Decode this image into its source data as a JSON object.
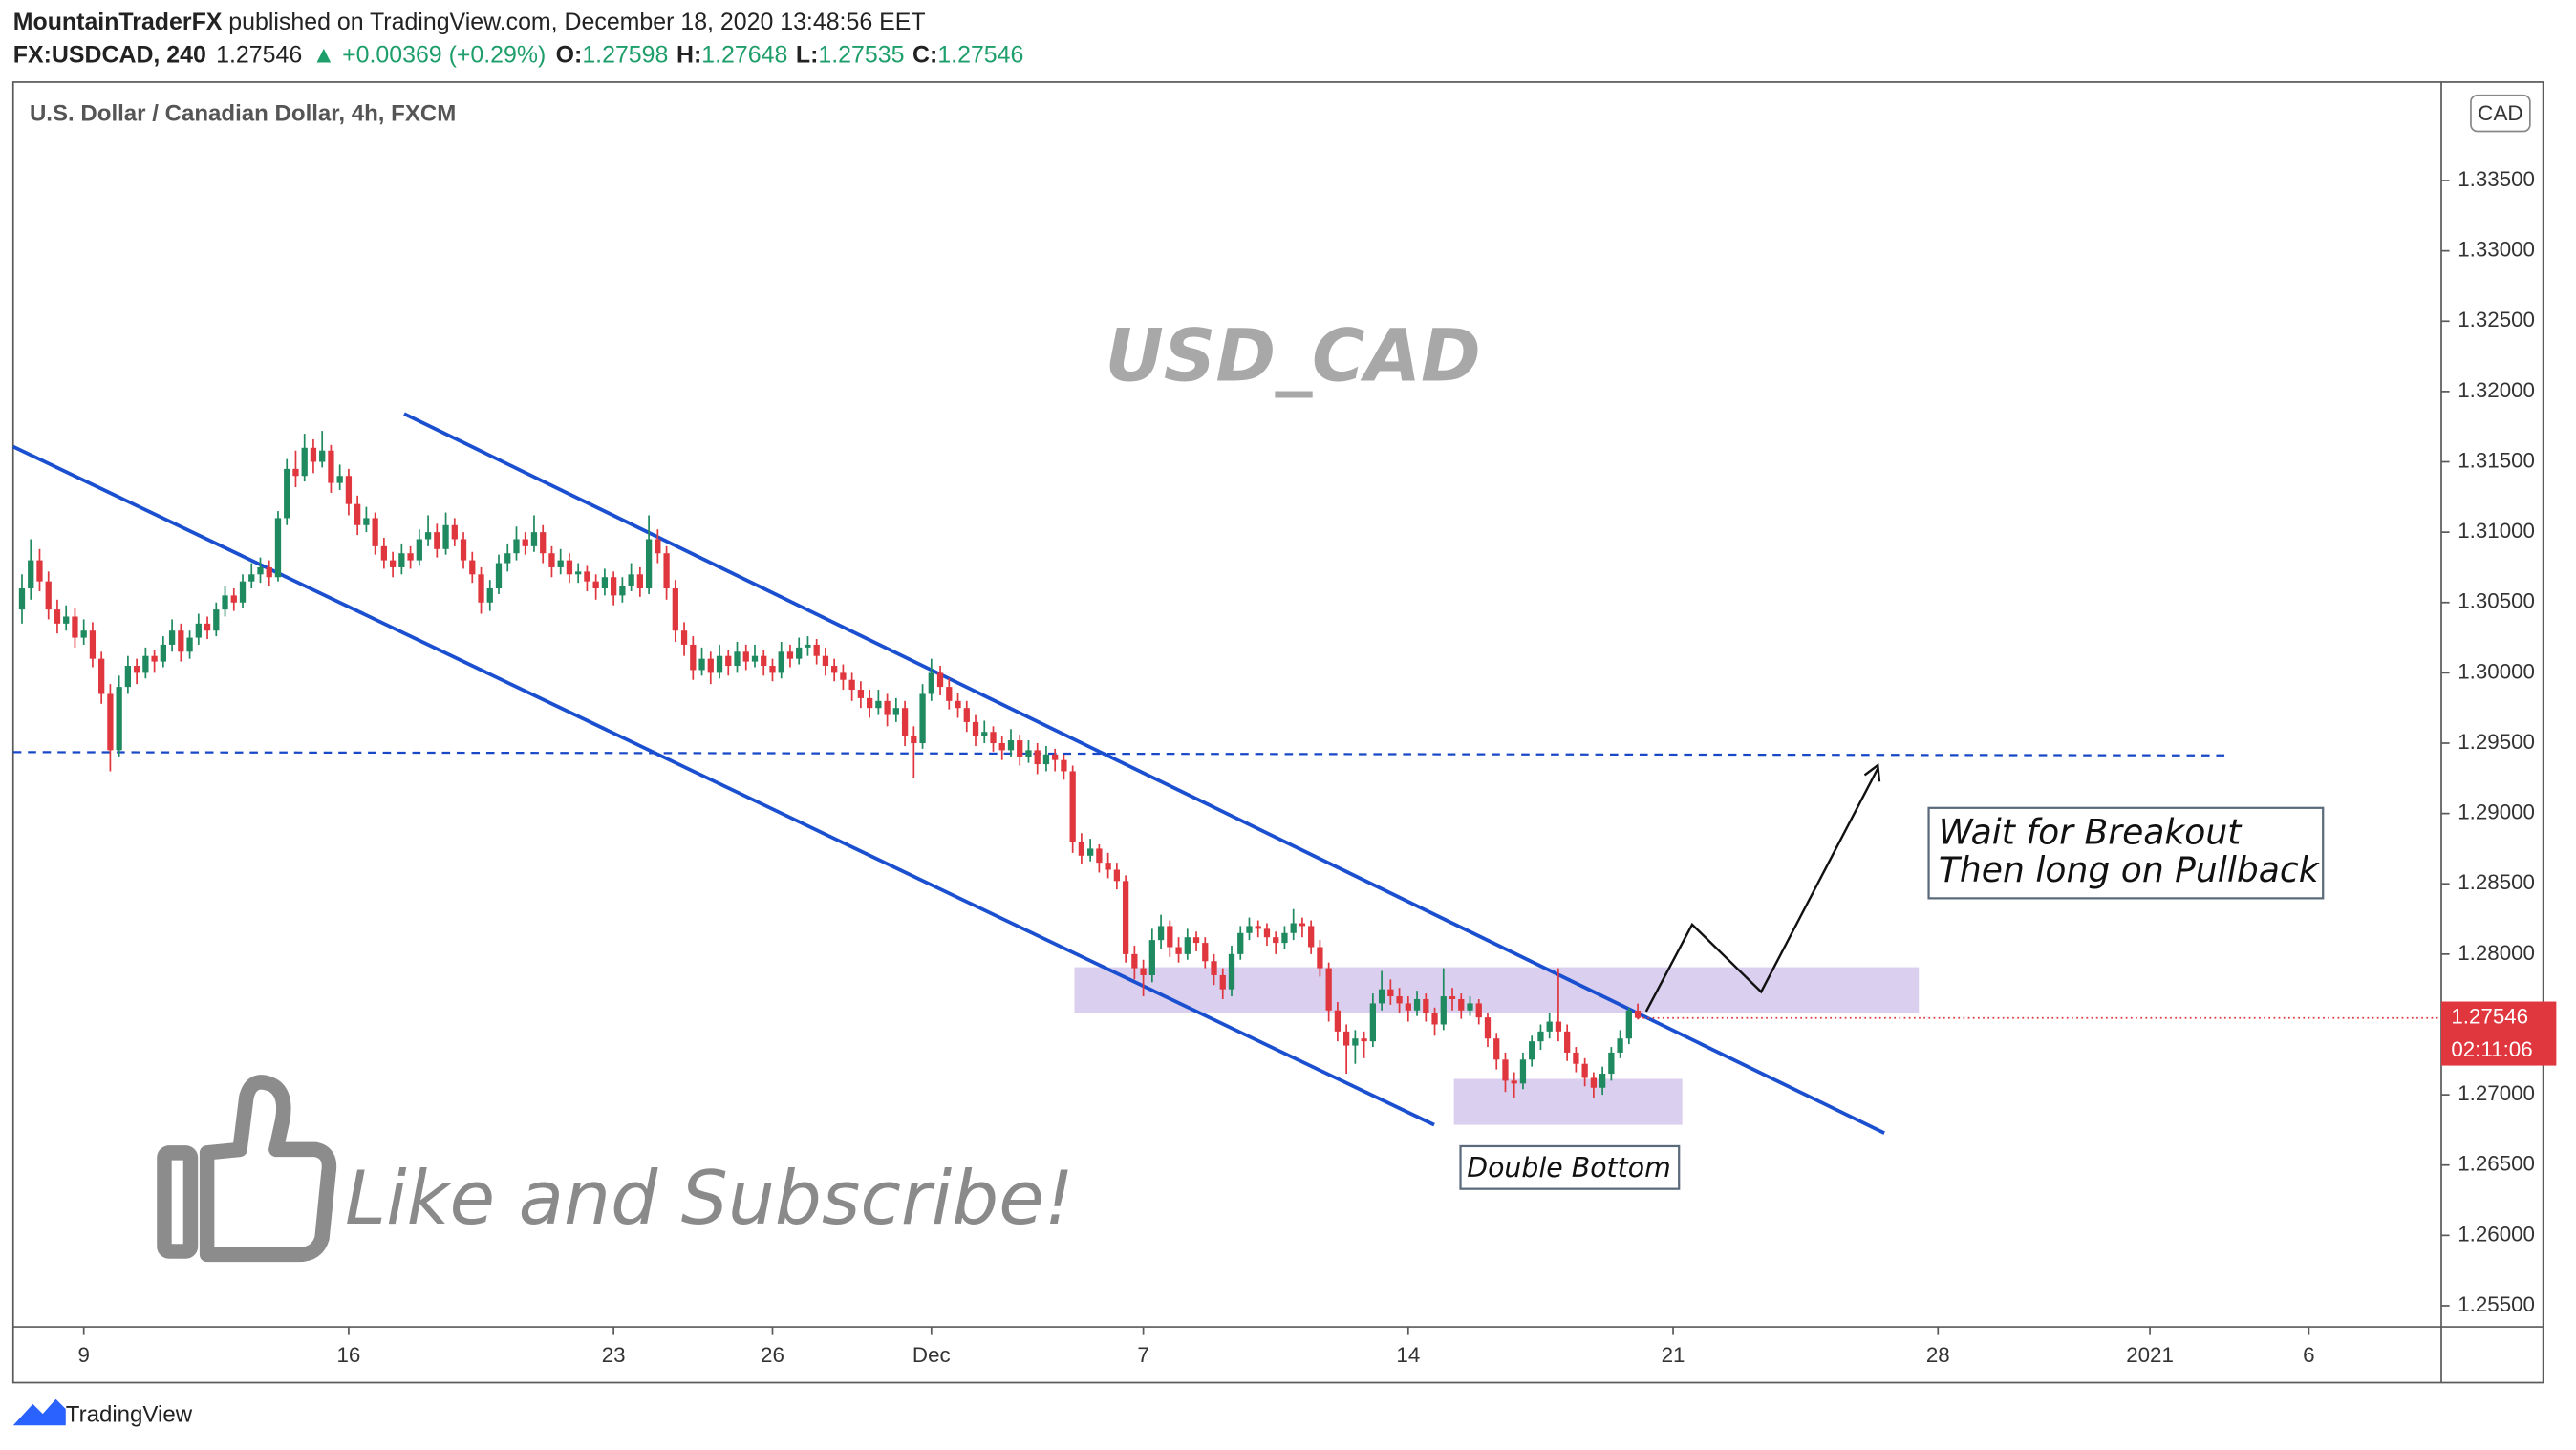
{
  "header": {
    "author": "MountainTraderFX",
    "published": "published on TradingView.com, December 18, 2020 13:48:56 EET",
    "symbol": "FX:USDCAD, 240",
    "change": "▲ +0.00369 (+0.29%)",
    "ohlc_labels": [
      "O:",
      "H:",
      "L:",
      "C:"
    ],
    "countdown": "02:11:06",
    "footer": "TradingView"
  },
  "chart_data": {
    "type": "candlestick",
    "title": "U.S. Dollar / Canadian Dollar, 4h, FXCM",
    "currency": "CAD",
    "up_color": "#1f8a5f",
    "down_color": "#e0373f",
    "grid": false,
    "annotations": {
      "watermark": "USD_CAD",
      "plan": [
        "Wait for Breakout",
        "Then long on Pullback"
      ],
      "pattern": "Double Bottom",
      "promo": "Like and Subscribe!"
    },
    "xlim": [
      -8,
      267
    ],
    "xticks": [
      {
        "value": 0,
        "label": "9"
      },
      {
        "value": 30,
        "label": "16"
      },
      {
        "value": 60,
        "label": "23"
      },
      {
        "value": 78,
        "label": "26"
      },
      {
        "value": 96,
        "label": "Dec"
      },
      {
        "value": 120,
        "label": "7"
      },
      {
        "value": 150,
        "label": "14"
      },
      {
        "value": 180,
        "label": "21"
      },
      {
        "value": 210,
        "label": "28"
      },
      {
        "value": 234,
        "label": "2021"
      },
      {
        "value": 252,
        "label": "6"
      }
    ],
    "ylim": [
      1.2535,
      1.342
    ],
    "yticks": [
      {
        "value": 1.255,
        "label": "1.25500"
      },
      {
        "value": 1.26,
        "label": "1.26000"
      },
      {
        "value": 1.265,
        "label": "1.26500"
      },
      {
        "value": 1.27,
        "label": "1.27000"
      },
      {
        "value": 1.275,
        "label": "1.27500"
      },
      {
        "value": 1.28,
        "label": "1.28000"
      },
      {
        "value": 1.285,
        "label": "1.28500"
      },
      {
        "value": 1.29,
        "label": "1.29000"
      },
      {
        "value": 1.295,
        "label": "1.29500"
      },
      {
        "value": 1.3,
        "label": "1.30000"
      },
      {
        "value": 1.305,
        "label": "1.30500"
      },
      {
        "value": 1.31,
        "label": "1.31000"
      },
      {
        "value": 1.315,
        "label": "1.31500"
      },
      {
        "value": 1.32,
        "label": "1.32000"
      },
      {
        "value": 1.325,
        "label": "1.32500"
      },
      {
        "value": 1.33,
        "label": "1.33000"
      },
      {
        "value": 1.335,
        "label": "1.33500"
      }
    ],
    "x": [
      -7,
      -6,
      -5,
      -4,
      -3,
      -2,
      -1,
      0,
      1,
      2,
      3,
      4,
      5,
      6,
      7,
      8,
      9,
      10,
      11,
      12,
      13,
      14,
      15,
      16,
      17,
      18,
      19,
      20,
      21,
      22,
      23,
      24,
      25,
      26,
      27,
      28,
      29,
      30,
      31,
      32,
      33,
      34,
      35,
      36,
      37,
      38,
      39,
      40,
      41,
      42,
      43,
      44,
      45,
      46,
      47,
      48,
      49,
      50,
      51,
      52,
      53,
      54,
      55,
      56,
      57,
      58,
      59,
      60,
      61,
      62,
      63,
      64,
      65,
      66,
      67,
      68,
      69,
      70,
      71,
      72,
      73,
      74,
      75,
      76,
      77,
      78,
      79,
      80,
      81,
      82,
      83,
      84,
      85,
      86,
      87,
      88,
      89,
      90,
      91,
      92,
      93,
      94,
      95,
      96,
      97,
      98,
      99,
      100,
      101,
      102,
      103,
      104,
      105,
      106,
      107,
      108,
      109,
      110,
      111,
      112,
      113,
      114,
      115,
      116,
      117,
      118,
      119,
      120,
      121,
      122,
      123,
      124,
      125,
      126,
      127,
      128,
      129,
      130,
      131,
      132,
      133,
      134,
      135,
      136,
      137,
      138,
      139,
      140,
      141,
      142,
      143,
      144,
      145,
      146,
      147,
      148,
      149,
      150,
      151,
      152,
      153,
      154,
      155,
      156,
      157,
      158,
      159,
      160,
      161,
      162,
      163,
      164,
      165,
      166,
      167,
      168,
      169,
      170,
      171,
      172,
      173,
      174,
      175,
      176
    ],
    "candles": [
      [
        1.3045,
        1.307,
        1.3035,
        1.306
      ],
      [
        1.306,
        1.3095,
        1.3052,
        1.308
      ],
      [
        1.308,
        1.3088,
        1.3058,
        1.3065
      ],
      [
        1.3065,
        1.3072,
        1.3038,
        1.3045
      ],
      [
        1.3045,
        1.3052,
        1.3028,
        1.3035
      ],
      [
        1.3035,
        1.3048,
        1.303,
        1.304
      ],
      [
        1.304,
        1.3046,
        1.3018,
        1.3025
      ],
      [
        1.3025,
        1.3038,
        1.302,
        1.303
      ],
      [
        1.303,
        1.3036,
        1.3004,
        1.301
      ],
      [
        1.301,
        1.3015,
        1.2978,
        1.2985
      ],
      [
        1.2985,
        1.2992,
        1.293,
        1.2945
      ],
      [
        1.2945,
        1.2998,
        1.294,
        1.299
      ],
      [
        1.299,
        1.3012,
        1.2985,
        1.3005
      ],
      [
        1.3005,
        1.301,
        1.2992,
        1.3
      ],
      [
        1.3,
        1.3018,
        1.2996,
        1.3012
      ],
      [
        1.3012,
        1.3016,
        1.3,
        1.3008
      ],
      [
        1.3008,
        1.3026,
        1.3004,
        1.302
      ],
      [
        1.302,
        1.3038,
        1.3015,
        1.303
      ],
      [
        1.303,
        1.3035,
        1.3008,
        1.3015
      ],
      [
        1.3015,
        1.303,
        1.301,
        1.3025
      ],
      [
        1.3025,
        1.3042,
        1.302,
        1.3035
      ],
      [
        1.3035,
        1.304,
        1.3024,
        1.303
      ],
      [
        1.303,
        1.305,
        1.3026,
        1.3045
      ],
      [
        1.3045,
        1.3062,
        1.304,
        1.3055
      ],
      [
        1.3055,
        1.306,
        1.3044,
        1.305
      ],
      [
        1.305,
        1.307,
        1.3046,
        1.3065
      ],
      [
        1.3065,
        1.3078,
        1.306,
        1.307
      ],
      [
        1.307,
        1.3082,
        1.3064,
        1.3075
      ],
      [
        1.3075,
        1.308,
        1.3062,
        1.3068
      ],
      [
        1.3068,
        1.3115,
        1.3065,
        1.311
      ],
      [
        1.311,
        1.3152,
        1.3105,
        1.3145
      ],
      [
        1.3145,
        1.3158,
        1.3132,
        1.314
      ],
      [
        1.314,
        1.317,
        1.3136,
        1.316
      ],
      [
        1.316,
        1.3166,
        1.3142,
        1.315
      ],
      [
        1.315,
        1.3172,
        1.3146,
        1.3158
      ],
      [
        1.3158,
        1.3162,
        1.3128,
        1.3135
      ],
      [
        1.3135,
        1.3148,
        1.313,
        1.314
      ],
      [
        1.314,
        1.3145,
        1.3112,
        1.312
      ],
      [
        1.312,
        1.3126,
        1.3098,
        1.3105
      ],
      [
        1.3105,
        1.3118,
        1.31,
        1.311
      ],
      [
        1.311,
        1.3114,
        1.3084,
        1.309
      ],
      [
        1.309,
        1.3096,
        1.3074,
        1.308
      ],
      [
        1.308,
        1.3086,
        1.3068,
        1.3075
      ],
      [
        1.3075,
        1.3092,
        1.307,
        1.3085
      ],
      [
        1.3085,
        1.309,
        1.3074,
        1.308
      ],
      [
        1.308,
        1.3102,
        1.3076,
        1.3095
      ],
      [
        1.3095,
        1.3112,
        1.309,
        1.31
      ],
      [
        1.31,
        1.3106,
        1.3082,
        1.3088
      ],
      [
        1.3088,
        1.3114,
        1.3084,
        1.3105
      ],
      [
        1.3105,
        1.311,
        1.309,
        1.3095
      ],
      [
        1.3095,
        1.31,
        1.3074,
        1.308
      ],
      [
        1.308,
        1.3086,
        1.3064,
        1.307
      ],
      [
        1.307,
        1.3075,
        1.3042,
        1.305
      ],
      [
        1.305,
        1.3066,
        1.3044,
        1.306
      ],
      [
        1.306,
        1.3084,
        1.3056,
        1.3078
      ],
      [
        1.3078,
        1.3092,
        1.3072,
        1.3085
      ],
      [
        1.3085,
        1.3104,
        1.308,
        1.3095
      ],
      [
        1.3095,
        1.31,
        1.3084,
        1.309
      ],
      [
        1.309,
        1.3112,
        1.3086,
        1.31
      ],
      [
        1.31,
        1.3105,
        1.3078,
        1.3085
      ],
      [
        1.3085,
        1.309,
        1.3068,
        1.3075
      ],
      [
        1.3075,
        1.3088,
        1.307,
        1.308
      ],
      [
        1.308,
        1.3085,
        1.3064,
        1.307
      ],
      [
        1.307,
        1.3078,
        1.3064,
        1.3072
      ],
      [
        1.3072,
        1.3076,
        1.3058,
        1.3065
      ],
      [
        1.3065,
        1.307,
        1.3052,
        1.306
      ],
      [
        1.306,
        1.3074,
        1.3055,
        1.3068
      ],
      [
        1.3068,
        1.3072,
        1.3048,
        1.3055
      ],
      [
        1.3055,
        1.3068,
        1.305,
        1.3062
      ],
      [
        1.3062,
        1.3078,
        1.3058,
        1.307
      ],
      [
        1.307,
        1.3075,
        1.3054,
        1.306
      ],
      [
        1.306,
        1.3112,
        1.3056,
        1.3095
      ],
      [
        1.3095,
        1.3102,
        1.3078,
        1.3085
      ],
      [
        1.3085,
        1.309,
        1.3052,
        1.306
      ],
      [
        1.306,
        1.3066,
        1.3022,
        1.303
      ],
      [
        1.303,
        1.3036,
        1.3012,
        1.302
      ],
      [
        1.302,
        1.3026,
        1.2995,
        1.3002
      ],
      [
        1.3002,
        1.3018,
        1.2998,
        1.301
      ],
      [
        1.301,
        1.3015,
        1.2992,
        1.3
      ],
      [
        1.3,
        1.302,
        1.2996,
        1.3012
      ],
      [
        1.3012,
        1.3016,
        1.2998,
        1.3005
      ],
      [
        1.3005,
        1.3022,
        1.3,
        1.3015
      ],
      [
        1.3015,
        1.302,
        1.3002,
        1.3008
      ],
      [
        1.3008,
        1.302,
        1.3004,
        1.3012
      ],
      [
        1.3012,
        1.3016,
        1.2998,
        1.3005
      ],
      [
        1.3005,
        1.301,
        1.2994,
        1.3
      ],
      [
        1.3,
        1.3022,
        1.2996,
        1.3015
      ],
      [
        1.3015,
        1.302,
        1.3004,
        1.301
      ],
      [
        1.301,
        1.3025,
        1.3006,
        1.3018
      ],
      [
        1.3018,
        1.3026,
        1.3012,
        1.302
      ],
      [
        1.302,
        1.3024,
        1.3006,
        1.3012
      ],
      [
        1.3012,
        1.3018,
        1.2998,
        1.3005
      ],
      [
        1.3005,
        1.301,
        1.2994,
        1.3
      ],
      [
        1.3,
        1.3006,
        1.2988,
        1.2995
      ],
      [
        1.2995,
        1.3,
        1.298,
        1.2988
      ],
      [
        1.2988,
        1.2994,
        1.2975,
        1.2982
      ],
      [
        1.2982,
        1.2988,
        1.2968,
        1.2975
      ],
      [
        1.2975,
        1.2988,
        1.297,
        1.298
      ],
      [
        1.298,
        1.2985,
        1.2962,
        1.297
      ],
      [
        1.297,
        1.2982,
        1.2965,
        1.2975
      ],
      [
        1.2975,
        1.298,
        1.2948,
        1.2955
      ],
      [
        1.2955,
        1.2962,
        1.2925,
        1.295
      ],
      [
        1.295,
        1.2992,
        1.2946,
        1.2985
      ],
      [
        1.2985,
        1.301,
        1.298,
        1.3
      ],
      [
        1.3,
        1.3005,
        1.2984,
        1.299
      ],
      [
        1.299,
        1.2996,
        1.2974,
        1.298
      ],
      [
        1.298,
        1.2986,
        1.2968,
        1.2975
      ],
      [
        1.2975,
        1.298,
        1.2958,
        1.2965
      ],
      [
        1.2965,
        1.297,
        1.2948,
        1.2955
      ],
      [
        1.2955,
        1.2966,
        1.295,
        1.2958
      ],
      [
        1.2958,
        1.2962,
        1.2944,
        1.295
      ],
      [
        1.295,
        1.2955,
        1.2938,
        1.2945
      ],
      [
        1.2945,
        1.296,
        1.294,
        1.2952
      ],
      [
        1.2952,
        1.2956,
        1.2934,
        1.294
      ],
      [
        1.294,
        1.2952,
        1.2936,
        1.2945
      ],
      [
        1.2945,
        1.295,
        1.2928,
        1.2935
      ],
      [
        1.2935,
        1.2948,
        1.293,
        1.2942
      ],
      [
        1.2942,
        1.2946,
        1.293,
        1.2938
      ],
      [
        1.2938,
        1.2942,
        1.2924,
        1.293
      ],
      [
        1.293,
        1.2934,
        1.2872,
        1.288
      ],
      [
        1.288,
        1.2886,
        1.2864,
        1.287
      ],
      [
        1.287,
        1.2882,
        1.2866,
        1.2875
      ],
      [
        1.2875,
        1.2878,
        1.2858,
        1.2865
      ],
      [
        1.2865,
        1.2872,
        1.2854,
        1.286
      ],
      [
        1.286,
        1.2865,
        1.2846,
        1.2852
      ],
      [
        1.2852,
        1.2856,
        1.2794,
        1.28
      ],
      [
        1.28,
        1.2806,
        1.2782,
        1.279
      ],
      [
        1.279,
        1.2796,
        1.277,
        1.2785
      ],
      [
        1.2785,
        1.2818,
        1.278,
        1.281
      ],
      [
        1.281,
        1.2828,
        1.2804,
        1.282
      ],
      [
        1.282,
        1.2824,
        1.2798,
        1.2805
      ],
      [
        1.2805,
        1.2812,
        1.2794,
        1.28
      ],
      [
        1.28,
        1.2818,
        1.2796,
        1.2812
      ],
      [
        1.2812,
        1.2816,
        1.2802,
        1.2808
      ],
      [
        1.2808,
        1.2812,
        1.279,
        1.2795
      ],
      [
        1.2795,
        1.28,
        1.2778,
        1.2785
      ],
      [
        1.2785,
        1.279,
        1.2768,
        1.2775
      ],
      [
        1.2775,
        1.2806,
        1.277,
        1.28
      ],
      [
        1.28,
        1.282,
        1.2796,
        1.2815
      ],
      [
        1.2815,
        1.2826,
        1.281,
        1.282
      ],
      [
        1.282,
        1.2824,
        1.2812,
        1.2818
      ],
      [
        1.2818,
        1.2822,
        1.2806,
        1.2812
      ],
      [
        1.2812,
        1.2816,
        1.28,
        1.2808
      ],
      [
        1.2808,
        1.282,
        1.2804,
        1.2815
      ],
      [
        1.2815,
        1.2832,
        1.281,
        1.2822
      ],
      [
        1.2822,
        1.2826,
        1.2812,
        1.282
      ],
      [
        1.282,
        1.2824,
        1.28,
        1.2805
      ],
      [
        1.2805,
        1.281,
        1.2784,
        1.279
      ],
      [
        1.279,
        1.2794,
        1.2752,
        1.276
      ],
      [
        1.276,
        1.2766,
        1.2738,
        1.2745
      ],
      [
        1.2745,
        1.275,
        1.2715,
        1.2735
      ],
      [
        1.2735,
        1.2746,
        1.2722,
        1.274
      ],
      [
        1.274,
        1.2745,
        1.2726,
        1.2738
      ],
      [
        1.2738,
        1.2772,
        1.2734,
        1.2765
      ],
      [
        1.2765,
        1.2788,
        1.276,
        1.2775
      ],
      [
        1.2775,
        1.2782,
        1.2764,
        1.277
      ],
      [
        1.277,
        1.2776,
        1.2758,
        1.2765
      ],
      [
        1.2765,
        1.277,
        1.2752,
        1.276
      ],
      [
        1.276,
        1.2774,
        1.2756,
        1.2768
      ],
      [
        1.2768,
        1.2772,
        1.2752,
        1.2758
      ],
      [
        1.2758,
        1.2762,
        1.2742,
        1.275
      ],
      [
        1.275,
        1.279,
        1.2746,
        1.277
      ],
      [
        1.277,
        1.2776,
        1.276,
        1.2768
      ],
      [
        1.2768,
        1.2772,
        1.2754,
        1.276
      ],
      [
        1.276,
        1.277,
        1.2756,
        1.2765
      ],
      [
        1.2765,
        1.2768,
        1.275,
        1.2755
      ],
      [
        1.2755,
        1.2758,
        1.2734,
        1.274
      ],
      [
        1.274,
        1.2744,
        1.2718,
        1.2725
      ],
      [
        1.2725,
        1.273,
        1.2702,
        1.271
      ],
      [
        1.271,
        1.2716,
        1.2698,
        1.2708
      ],
      [
        1.2708,
        1.273,
        1.2704,
        1.2725
      ],
      [
        1.2725,
        1.2742,
        1.272,
        1.2738
      ],
      [
        1.2738,
        1.275,
        1.2732,
        1.2745
      ],
      [
        1.2745,
        1.2758,
        1.274,
        1.2752
      ],
      [
        1.2752,
        1.279,
        1.2738,
        1.2745
      ],
      [
        1.2745,
        1.275,
        1.2724,
        1.273
      ],
      [
        1.273,
        1.2734,
        1.2716,
        1.2722
      ],
      [
        1.2722,
        1.2726,
        1.2706,
        1.2712
      ],
      [
        1.2712,
        1.2716,
        1.2698,
        1.2705
      ],
      [
        1.2705,
        1.272,
        1.27,
        1.2715
      ],
      [
        1.2715,
        1.2734,
        1.271,
        1.273
      ],
      [
        1.273,
        1.2746,
        1.2726,
        1.274
      ],
      [
        1.274,
        1.2762,
        1.2736,
        1.276
      ],
      [
        1.27598,
        1.27648,
        1.27535,
        1.27546
      ]
    ]
  }
}
